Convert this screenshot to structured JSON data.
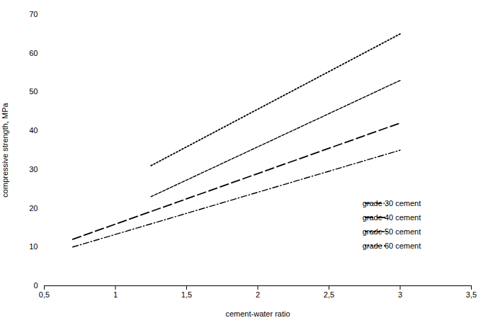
{
  "chart_data": {
    "type": "line",
    "xlabel": "cement-water ratio",
    "ylabel": "compressive strength, MPa",
    "xlim": [
      0.5,
      3.5
    ],
    "ylim": [
      0,
      70
    ],
    "xticks": [
      {
        "value": 0.5,
        "label": "0,5"
      },
      1,
      {
        "value": 1.5,
        "label": "1,5"
      },
      2,
      {
        "value": 2.5,
        "label": "2,5"
      },
      3,
      {
        "value": 3.5,
        "label": "3,5"
      }
    ],
    "yticks": [
      0,
      10,
      20,
      30,
      40,
      50,
      60,
      70
    ],
    "grid": false,
    "legend": "lower right",
    "series": [
      {
        "name": "grade 30 cement",
        "color": "#000000",
        "line_style": "dashdot",
        "x": [
          0.7,
          3.0
        ],
        "values": [
          10,
          35
        ]
      },
      {
        "name": "grade 40 cement",
        "color": "#000000",
        "line_style": "largedash",
        "x": [
          0.7,
          3.0
        ],
        "values": [
          12,
          42
        ]
      },
      {
        "name": "grade 50 cement",
        "color": "#000000",
        "line_style": "smalldash",
        "x": [
          1.25,
          3.0
        ],
        "values": [
          23,
          53
        ]
      },
      {
        "name": "grade 60 cement",
        "color": "#000000",
        "line_style": "dotted",
        "x": [
          1.25,
          3.0
        ],
        "values": [
          31,
          65
        ]
      }
    ]
  }
}
